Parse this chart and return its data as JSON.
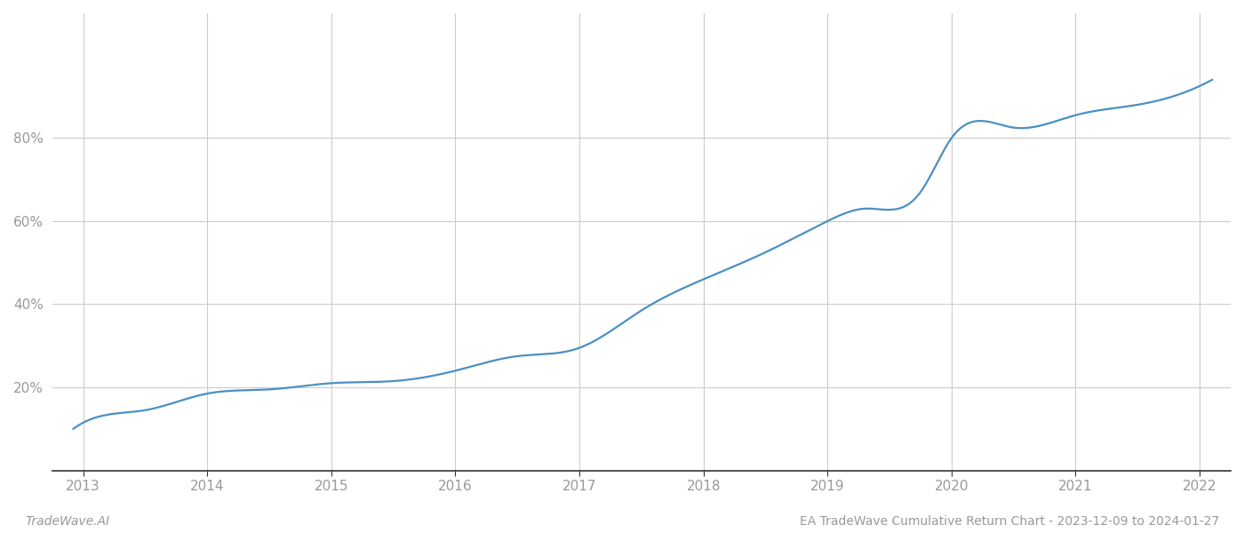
{
  "title": "EA TradeWave Cumulative Return Chart - 2023-12-09 to 2024-01-27",
  "watermark": "TradeWave.AI",
  "line_color": "#4a90c4",
  "line_width": 1.6,
  "background_color": "#ffffff",
  "grid_color": "#cccccc",
  "x_years": [
    2013,
    2014,
    2015,
    2016,
    2017,
    2018,
    2019,
    2020,
    2021,
    2022
  ],
  "x_control": [
    2012.92,
    2013.0,
    2013.5,
    2014.0,
    2014.5,
    2015.0,
    2015.5,
    2016.0,
    2016.5,
    2017.0,
    2017.5,
    2018.0,
    2018.5,
    2019.0,
    2019.3,
    2019.75,
    2020.0,
    2020.5,
    2021.0,
    2021.5,
    2022.0,
    2022.1
  ],
  "y_control": [
    10.0,
    11.5,
    14.5,
    18.5,
    19.5,
    21.0,
    21.5,
    24.0,
    27.5,
    29.5,
    38.5,
    46.0,
    52.5,
    60.0,
    63.0,
    67.0,
    80.0,
    82.5,
    85.5,
    88.0,
    92.5,
    94.0
  ],
  "ylim": [
    0,
    110
  ],
  "yticks": [
    20,
    40,
    60,
    80
  ],
  "xlim": [
    2012.75,
    2022.25
  ],
  "footer_fontsize": 10,
  "tick_fontsize": 11,
  "tick_color": "#999999",
  "spine_color": "#333333"
}
